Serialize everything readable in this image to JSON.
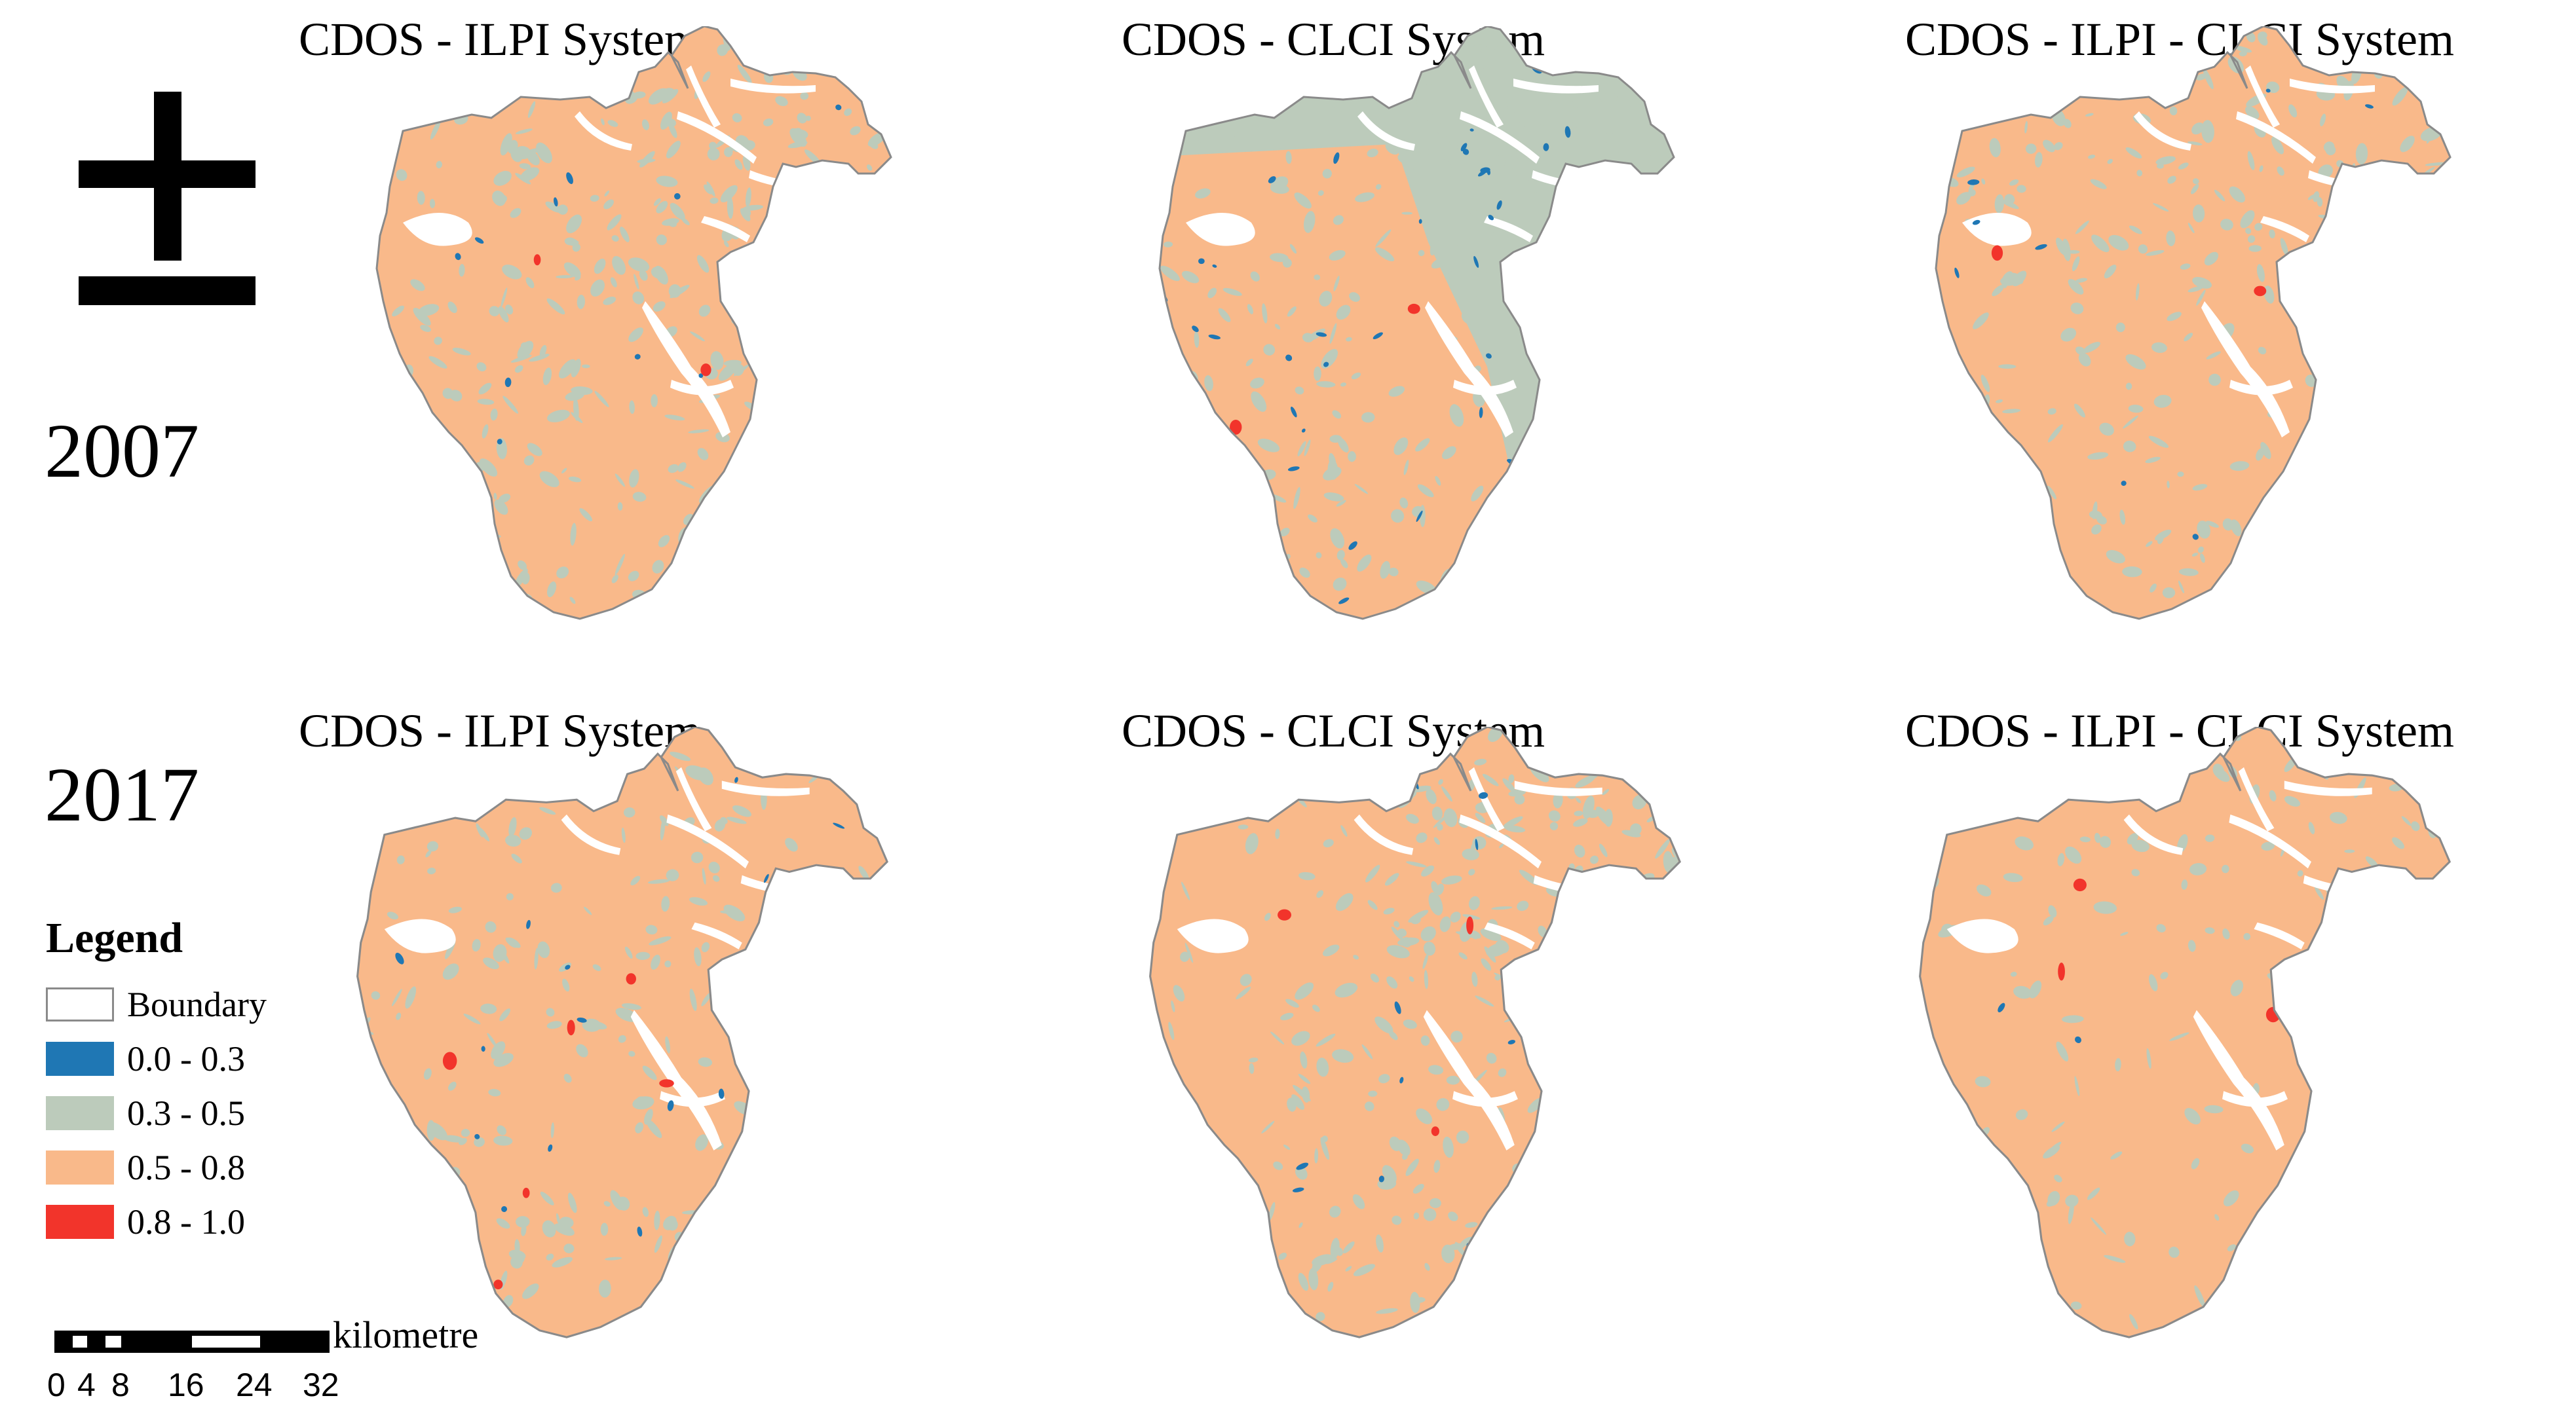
{
  "north_arrow": {
    "symbol": "±",
    "icon": "north-arrow-icon"
  },
  "years": [
    "2007",
    "2017"
  ],
  "panels": [
    {
      "title": "CDOS - ILPI System",
      "year": "2007",
      "scheme": "ilpi_2007"
    },
    {
      "title": "CDOS - CLCI System",
      "year": "2007",
      "scheme": "clci_2007"
    },
    {
      "title": "CDOS - ILPI - CLCI System",
      "year": "2007",
      "scheme": "both_2007"
    },
    {
      "title": "CDOS - ILPI System",
      "year": "2017",
      "scheme": "ilpi_2017"
    },
    {
      "title": "CDOS - CLCI System",
      "year": "2017",
      "scheme": "clci_2017"
    },
    {
      "title": "CDOS - ILPI - CLCI System",
      "year": "2017",
      "scheme": "both_2017"
    }
  ],
  "legend": {
    "title": "Legend",
    "items": [
      {
        "label": "Boundary",
        "color": "#ffffff",
        "border": "#8a8a8a"
      },
      {
        "label": "0.0 - 0.3",
        "color": "#1f77b4"
      },
      {
        "label": "0.3 - 0.5",
        "color": "#bccbbb"
      },
      {
        "label": "0.5 - 0.8",
        "color": "#f9b98a"
      },
      {
        "label": "0.8 - 1.0",
        "color": "#f2342b"
      }
    ]
  },
  "scale_bar": {
    "unit": "kilometre",
    "ticks": [
      "0",
      "4",
      "8",
      "16",
      "24",
      "32"
    ]
  },
  "colors": {
    "boundary_stroke": "#8a8a8a",
    "class_low": "#1f77b4",
    "class_midlow": "#bccbbb",
    "class_midhigh": "#f9b98a",
    "class_high": "#f2342b",
    "nodata": "#ffffff"
  }
}
